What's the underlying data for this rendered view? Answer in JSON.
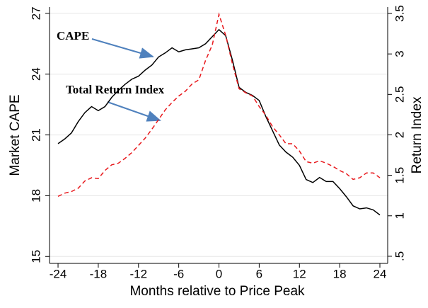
{
  "chart_data": {
    "type": "line",
    "x_label": "Months relative to Price Peak",
    "y_label": "Market CAPE",
    "y2_label": "Return Index",
    "annotations": [
      "CAPE",
      "Total Return Index"
    ],
    "x": [
      -24,
      -23,
      -22,
      -21,
      -20,
      -19,
      -18,
      -17,
      -16,
      -15,
      -14,
      -13,
      -12,
      -11,
      -10,
      -9,
      -8,
      -7,
      -6,
      -5,
      -4,
      -3,
      -2,
      -1,
      0,
      1,
      2,
      3,
      4,
      5,
      6,
      7,
      8,
      9,
      10,
      11,
      12,
      13,
      14,
      15,
      16,
      17,
      18,
      19,
      20,
      21,
      22,
      23,
      24
    ],
    "series": [
      {
        "name": "CAPE",
        "color": "#000000",
        "dash": false,
        "values": [
          20.57,
          20.8,
          21.1,
          21.65,
          22.1,
          22.4,
          22.2,
          22.4,
          22.85,
          23.2,
          23.5,
          23.75,
          23.9,
          24.2,
          24.45,
          24.85,
          25.05,
          25.3,
          25.1,
          25.2,
          25.25,
          25.3,
          25.5,
          25.85,
          26.2,
          25.9,
          24.7,
          23.35,
          23.1,
          22.95,
          22.7,
          21.9,
          21.2,
          20.5,
          20.15,
          19.9,
          19.5,
          18.8,
          18.65,
          18.9,
          18.7,
          18.7,
          18.35,
          17.95,
          17.5,
          17.35,
          17.4,
          17.3,
          17.05
        ]
      },
      {
        "name": "Total Return Index",
        "color": "#e8191d",
        "dash": true,
        "axis": "y2",
        "values": [
          1.24,
          1.28,
          1.3,
          1.34,
          1.43,
          1.47,
          1.46,
          1.56,
          1.63,
          1.65,
          1.71,
          1.78,
          1.87,
          1.96,
          2.07,
          2.19,
          2.31,
          2.4,
          2.48,
          2.54,
          2.63,
          2.68,
          2.92,
          3.11,
          3.49,
          3.23,
          2.88,
          2.57,
          2.52,
          2.48,
          2.35,
          2.24,
          2.1,
          2.0,
          1.89,
          1.89,
          1.8,
          1.67,
          1.65,
          1.68,
          1.65,
          1.61,
          1.56,
          1.52,
          1.45,
          1.47,
          1.53,
          1.53,
          1.47
        ]
      }
    ],
    "xlim": [
      -25.27,
      25.16
    ],
    "xticks": [
      -24,
      -18,
      -12,
      -6,
      0,
      6,
      12,
      18,
      24
    ],
    "ylim": [
      14.66,
      27.31
    ],
    "yticks": [
      15,
      18,
      21,
      24,
      27
    ],
    "y2lim": [
      0.412,
      3.579
    ],
    "y2ticks": [
      {
        "value": 0.5,
        "label": ".5"
      },
      1,
      1.5,
      2,
      2.5,
      3,
      3.5
    ],
    "grid": true
  }
}
